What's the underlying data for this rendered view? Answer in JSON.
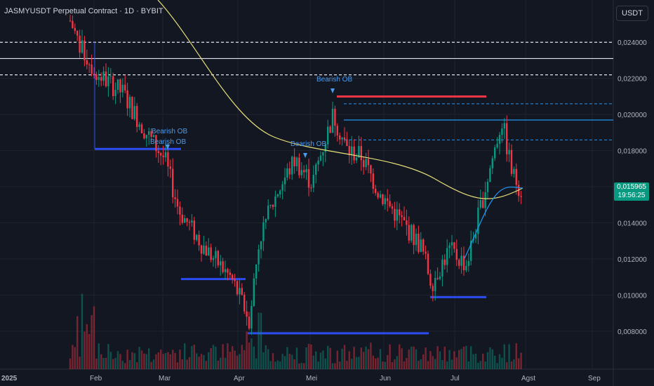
{
  "header": {
    "title": "JASMYUSDT Perpetual Contract · 1D · BYBIT",
    "currency_button": "USDT"
  },
  "last_price": {
    "value": "0,015965",
    "countdown": "19:56:25",
    "color": "#089981"
  },
  "colors": {
    "up": "#089981",
    "down": "#f23645",
    "ma": "#e8e07a",
    "ma2": "#2196f3",
    "orderblock": "#f23645",
    "support": "#2b4cf0"
  },
  "chart_data": {
    "type": "candlestick",
    "y_axis": {
      "ticks": [
        "0,024000",
        "0,022000",
        "0,020000",
        "0,018000",
        "0,016000",
        "0,014000",
        "0,012000",
        "0,010000",
        "0,008000"
      ]
    },
    "x_axis": {
      "ticks": [
        "2025",
        "Feb",
        "Mar",
        "Apr",
        "Mei",
        "Jun",
        "Jul",
        "Agst",
        "Sep"
      ]
    },
    "annotations": [
      "Bearish OB",
      "Bearish OB",
      "Bearish OB",
      "Bearish OB"
    ],
    "levels": [
      0.0243,
      0.0234,
      0.0225,
      0.0213,
      0.0209,
      0.02,
      0.0189
    ],
    "support_levels": [
      0.0184,
      0.0112,
      0.0102,
      0.0082
    ],
    "grid": true
  }
}
